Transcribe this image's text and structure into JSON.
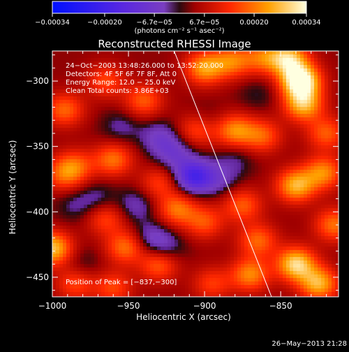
{
  "chart_data": {
    "type": "heatmap",
    "title": "Reconstructed RHESSI Image",
    "xlabel": "Heliocentric X (arcsec)",
    "ylabel": "Heliocentric Y (arcsec)",
    "xlim": [
      -1000,
      -812
    ],
    "ylim": [
      -465,
      -277
    ],
    "xticks": [
      -1000,
      -950,
      -900,
      -850
    ],
    "xtick_labels": [
      "−1000",
      "−950",
      "−900",
      "−850"
    ],
    "yticks": [
      -300,
      -350,
      -400,
      -450
    ],
    "ytick_labels": [
      "−300",
      "−350",
      "−400",
      "−450"
    ],
    "colorbar": {
      "range": [
        -0.00034,
        0.00034
      ],
      "tick_labels": [
        "−0.00034",
        "−0.00020",
        "−6.7e−05",
        "6.7e−05",
        "0.00020",
        "0.00034"
      ],
      "unit_label": "(photons cm⁻² s⁻¹ asec⁻²)"
    },
    "annotations": [
      "24−Oct−2003 13:48:26.000 to 13:52:20.000",
      "Detectors: 4F 5F 6F 7F 8F, Att 0",
      "Energy Range: 12.0 − 25.0 keV",
      "Clean     Total counts: 3.86E+03"
    ],
    "peak_label": "Position of Peak = [−837,−300]",
    "peak": [
      -837,
      -300
    ],
    "limb_line": [
      [
        -920,
        -277
      ],
      [
        -856,
        -465
      ]
    ],
    "blobs": [
      {
        "x": -837,
        "y": -300,
        "v": 0.00034
      },
      {
        "x": -845,
        "y": -283,
        "v": 0.00024
      },
      {
        "x": -835,
        "y": -318,
        "v": 0.00022
      },
      {
        "x": -900,
        "y": -290,
        "v": 0.0002
      },
      {
        "x": -882,
        "y": -285,
        "v": 0.00016
      },
      {
        "x": -862,
        "y": -282,
        "v": 0.00014
      },
      {
        "x": -965,
        "y": -300,
        "v": 0.00012
      },
      {
        "x": -940,
        "y": -315,
        "v": 0.00014
      },
      {
        "x": -992,
        "y": -322,
        "v": 0.00015
      },
      {
        "x": -820,
        "y": -340,
        "v": 0.00014
      },
      {
        "x": -905,
        "y": -337,
        "v": 0.00013
      },
      {
        "x": -880,
        "y": -338,
        "v": 0.00018
      },
      {
        "x": -862,
        "y": -342,
        "v": 0.00014
      },
      {
        "x": -960,
        "y": -360,
        "v": 0.00016
      },
      {
        "x": -985,
        "y": -365,
        "v": 0.00013
      },
      {
        "x": -993,
        "y": -372,
        "v": 0.00012
      },
      {
        "x": -930,
        "y": -378,
        "v": 0.00011
      },
      {
        "x": -840,
        "y": -380,
        "v": 0.00022
      },
      {
        "x": -822,
        "y": -370,
        "v": 0.00018
      },
      {
        "x": -918,
        "y": -398,
        "v": 0.00016
      },
      {
        "x": -965,
        "y": -405,
        "v": 0.00012
      },
      {
        "x": -875,
        "y": -395,
        "v": 0.00014
      },
      {
        "x": -900,
        "y": -408,
        "v": 0.00013
      },
      {
        "x": -815,
        "y": -410,
        "v": 0.00016
      },
      {
        "x": -865,
        "y": -422,
        "v": 0.00015
      },
      {
        "x": -1000,
        "y": -428,
        "v": 0.00024
      },
      {
        "x": -952,
        "y": -427,
        "v": 0.00016
      },
      {
        "x": -930,
        "y": -440,
        "v": 0.00015
      },
      {
        "x": -870,
        "y": -448,
        "v": 0.00018
      },
      {
        "x": -840,
        "y": -440,
        "v": 0.00026
      },
      {
        "x": -825,
        "y": -455,
        "v": 0.00022
      },
      {
        "x": -985,
        "y": -455,
        "v": 0.00012
      },
      {
        "x": -960,
        "y": -458,
        "v": 0.00012
      },
      {
        "x": -895,
        "y": -455,
        "v": 0.00011
      },
      {
        "x": -907,
        "y": -373,
        "v": -0.00022
      },
      {
        "x": -920,
        "y": -355,
        "v": -0.0001
      },
      {
        "x": -930,
        "y": -343,
        "v": -9e-05
      },
      {
        "x": -955,
        "y": -335,
        "v": -6e-05
      },
      {
        "x": -945,
        "y": -395,
        "v": -8e-05
      },
      {
        "x": -970,
        "y": -390,
        "v": -6e-05
      },
      {
        "x": -935,
        "y": -420,
        "v": -9e-05
      },
      {
        "x": -925,
        "y": -428,
        "v": -7e-05
      },
      {
        "x": -890,
        "y": -375,
        "v": -7e-05
      },
      {
        "x": -880,
        "y": -360,
        "v": -5e-05
      },
      {
        "x": -900,
        "y": -330,
        "v": -4e-05
      },
      {
        "x": -985,
        "y": -395,
        "v": -5e-05
      },
      {
        "x": -865,
        "y": -310,
        "v": -4e-05
      },
      {
        "x": -980,
        "y": -440,
        "v": -4e-05
      }
    ]
  },
  "footer_timestamp": "26−May−2013 21:28"
}
